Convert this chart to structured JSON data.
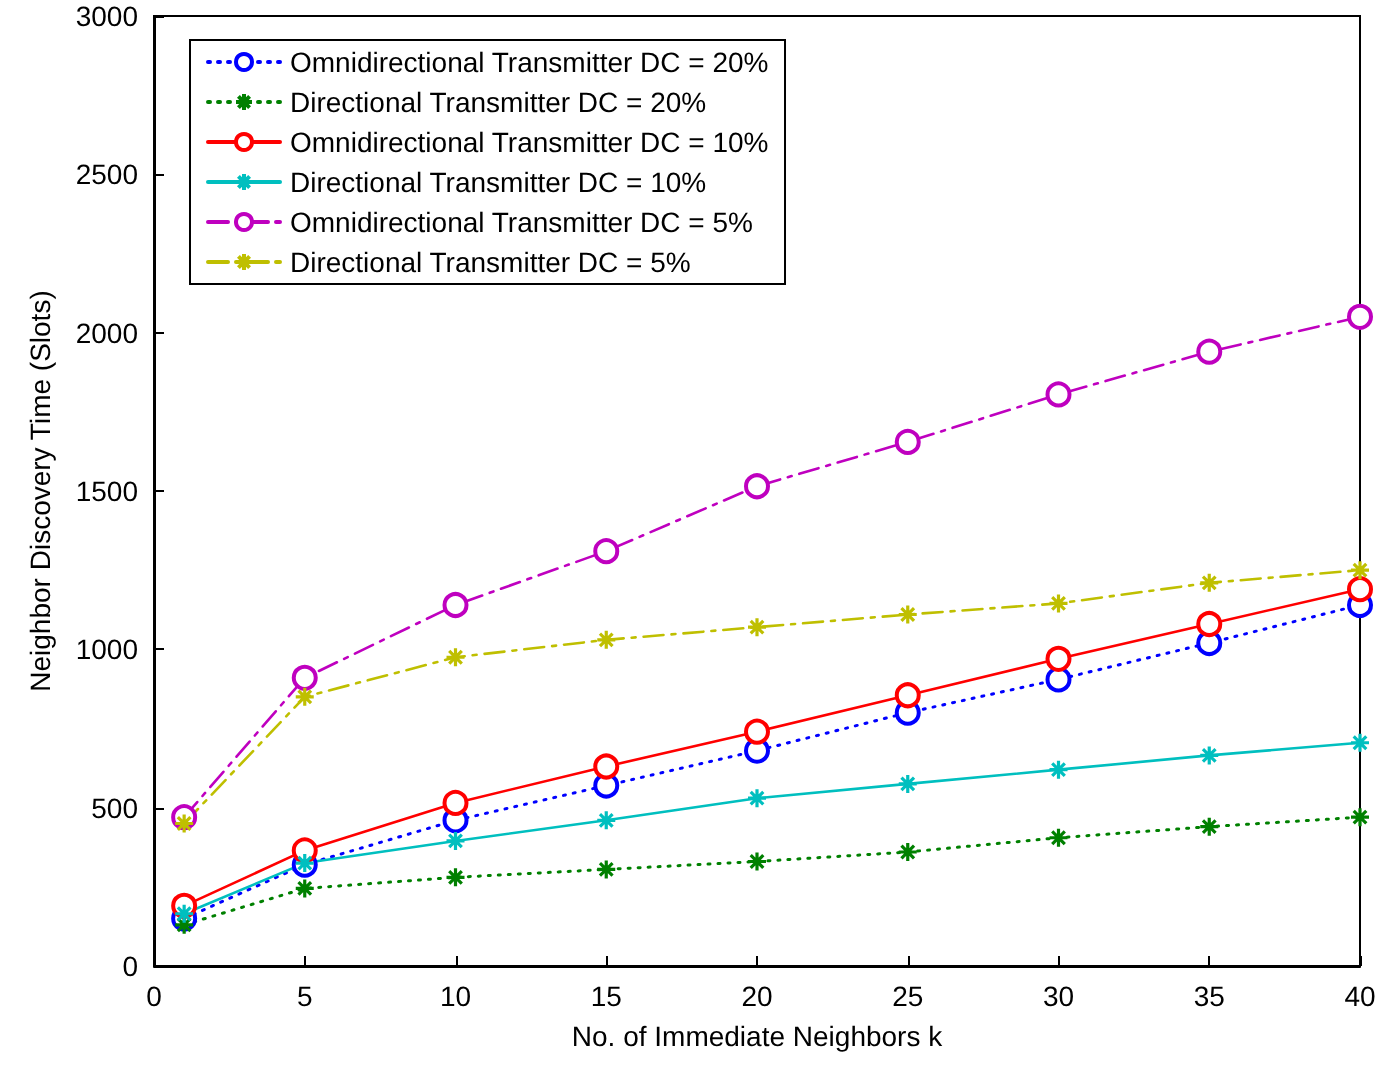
{
  "chart_data": {
    "type": "line",
    "xlabel": "No. of Immediate Neighbors k",
    "ylabel": "Neighbor Discovery Time (Slots)",
    "x": [
      1,
      5,
      10,
      15,
      20,
      25,
      30,
      35,
      40
    ],
    "xlim": [
      0,
      40
    ],
    "xticks": [
      0,
      5,
      10,
      15,
      20,
      25,
      30,
      35,
      40
    ],
    "ylim": [
      0,
      3000
    ],
    "yticks": [
      0,
      500,
      1000,
      1500,
      2000,
      2500,
      3000
    ],
    "grid": false,
    "legend": "top left",
    "series": [
      {
        "name": "Omnidirectional Transmitter DC = 20%",
        "color": "#0000ff",
        "marker": "circle",
        "line_style": "dotted",
        "values": [
          150,
          320,
          460,
          570,
          680,
          800,
          905,
          1020,
          1140
        ]
      },
      {
        "name": "Directional Transmitter DC = 20%",
        "color": "#008000",
        "marker": "cross",
        "line_style": "dotted",
        "values": [
          130,
          245,
          280,
          305,
          330,
          360,
          405,
          440,
          470
        ]
      },
      {
        "name": "Omnidirectional Transmitter DC = 10%",
        "color": "#ff0000",
        "marker": "circle",
        "line_style": "solid",
        "values": [
          190,
          365,
          515,
          630,
          740,
          855,
          970,
          1080,
          1190
        ]
      },
      {
        "name": "Directional Transmitter DC = 10%",
        "color": "#00bfbf",
        "marker": "cross",
        "line_style": "solid",
        "values": [
          165,
          325,
          395,
          460,
          530,
          575,
          620,
          665,
          705
        ]
      },
      {
        "name": "Omnidirectional Transmitter DC = 5%",
        "color": "#bf00bf",
        "marker": "circle",
        "line_style": "dashed",
        "values": [
          470,
          910,
          1140,
          1310,
          1515,
          1655,
          1805,
          1940,
          2050
        ]
      },
      {
        "name": "Directional Transmitter DC = 5%",
        "color": "#bfbf00",
        "marker": "cross",
        "line_style": "dashed",
        "values": [
          450,
          850,
          975,
          1030,
          1070,
          1110,
          1145,
          1210,
          1250
        ]
      }
    ]
  }
}
